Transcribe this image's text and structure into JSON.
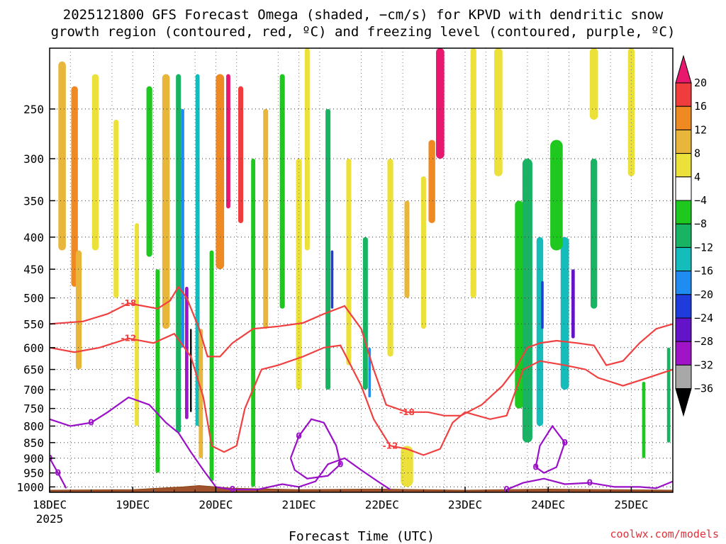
{
  "chart_data": {
    "type": "heatmap",
    "title_lines": [
      "2025121800 GFS Forecast Omega (shaded, −cm/s) for KPVD with dendritic snow",
      "growth region (contoured, red, ºC) and freezing level (contoured, purple, ºC)"
    ],
    "xlabel": "Forecast Time (UTC)",
    "ylabel": "",
    "y_scale": "log-pressure (hPa), inverted",
    "y_ticks": [
      250,
      300,
      350,
      400,
      450,
      500,
      550,
      600,
      650,
      700,
      750,
      800,
      850,
      900,
      950,
      1000
    ],
    "y_range": [
      200,
      1020
    ],
    "x_range_days": [
      18.0,
      25.5
    ],
    "x_ticks": [
      {
        "day": 18,
        "label": "18DEC",
        "sublabel": "2025"
      },
      {
        "day": 19,
        "label": "19DEC"
      },
      {
        "day": 20,
        "label": "20DEC"
      },
      {
        "day": 21,
        "label": "21DEC"
      },
      {
        "day": 22,
        "label": "22DEC"
      },
      {
        "day": 23,
        "label": "23DEC"
      },
      {
        "day": 24,
        "label": "24DEC"
      },
      {
        "day": 25,
        "label": "25DEC"
      }
    ],
    "grid": true,
    "colorbar": {
      "position": "right",
      "bins": [
        {
          "lo": 20,
          "hi": null,
          "color": "#e8186e"
        },
        {
          "lo": 16,
          "hi": 20,
          "color": "#f03c3c"
        },
        {
          "lo": 12,
          "hi": 16,
          "color": "#ef8a22"
        },
        {
          "lo": 8,
          "hi": 12,
          "color": "#e8b63a"
        },
        {
          "lo": 4,
          "hi": 8,
          "color": "#ece03a"
        },
        {
          "lo": -4,
          "hi": 4,
          "color": "#ffffff"
        },
        {
          "lo": -8,
          "hi": -4,
          "color": "#1ec81e"
        },
        {
          "lo": -12,
          "hi": -8,
          "color": "#18b464"
        },
        {
          "lo": -16,
          "hi": -12,
          "color": "#14bcbc"
        },
        {
          "lo": -20,
          "hi": -16,
          "color": "#1e8cf0"
        },
        {
          "lo": -24,
          "hi": -20,
          "color": "#1e3cdc"
        },
        {
          "lo": -28,
          "hi": -24,
          "color": "#6414c8"
        },
        {
          "lo": -32,
          "hi": -28,
          "color": "#a014c8"
        },
        {
          "lo": -36,
          "hi": -32,
          "color": "#a8a8a8"
        },
        {
          "lo": null,
          "hi": -36,
          "color": "#000000"
        }
      ],
      "labels": [
        "20",
        "16",
        "12",
        "8",
        "4",
        "−4",
        "−8",
        "−12",
        "−16",
        "−20",
        "−24",
        "−28",
        "−32",
        "−36"
      ]
    },
    "omega_blobs": [
      {
        "day": 18.15,
        "p0": 210,
        "p1": 420,
        "w": 0.09,
        "v": 10
      },
      {
        "day": 18.3,
        "p0": 230,
        "p1": 480,
        "w": 0.08,
        "v": 14
      },
      {
        "day": 18.35,
        "p0": 420,
        "p1": 650,
        "w": 0.07,
        "v": 10
      },
      {
        "day": 18.55,
        "p0": 220,
        "p1": 420,
        "w": 0.08,
        "v": 6
      },
      {
        "day": 18.8,
        "p0": 260,
        "p1": 500,
        "w": 0.06,
        "v": 6
      },
      {
        "day": 19.05,
        "p0": 380,
        "p1": 800,
        "w": 0.05,
        "v": 6
      },
      {
        "day": 19.2,
        "p0": 230,
        "p1": 430,
        "w": 0.07,
        "v": -6
      },
      {
        "day": 19.3,
        "p0": 450,
        "p1": 950,
        "w": 0.05,
        "v": -8
      },
      {
        "day": 19.4,
        "p0": 220,
        "p1": 560,
        "w": 0.09,
        "v": 10
      },
      {
        "day": 19.55,
        "p0": 220,
        "p1": 820,
        "w": 0.06,
        "v": -12
      },
      {
        "day": 19.6,
        "p0": 250,
        "p1": 600,
        "w": 0.04,
        "v": -20
      },
      {
        "day": 19.65,
        "p0": 480,
        "p1": 780,
        "w": 0.04,
        "v": -30
      },
      {
        "day": 19.7,
        "p0": 560,
        "p1": 760,
        "w": 0.02,
        "v": -40
      },
      {
        "day": 19.78,
        "p0": 220,
        "p1": 800,
        "w": 0.05,
        "v": -14
      },
      {
        "day": 19.82,
        "p0": 560,
        "p1": 900,
        "w": 0.05,
        "v": 10
      },
      {
        "day": 19.95,
        "p0": 420,
        "p1": 980,
        "w": 0.05,
        "v": -8
      },
      {
        "day": 20.05,
        "p0": 220,
        "p1": 450,
        "w": 0.1,
        "v": 12
      },
      {
        "day": 20.15,
        "p0": 220,
        "p1": 360,
        "w": 0.05,
        "v": 20
      },
      {
        "day": 20.3,
        "p0": 230,
        "p1": 380,
        "w": 0.06,
        "v": 16
      },
      {
        "day": 20.45,
        "p0": 300,
        "p1": 1000,
        "w": 0.05,
        "v": -8
      },
      {
        "day": 20.6,
        "p0": 250,
        "p1": 560,
        "w": 0.06,
        "v": 8
      },
      {
        "day": 20.8,
        "p0": 220,
        "p1": 520,
        "w": 0.06,
        "v": -6
      },
      {
        "day": 21.0,
        "p0": 300,
        "p1": 700,
        "w": 0.07,
        "v": 6
      },
      {
        "day": 21.1,
        "p0": 200,
        "p1": 420,
        "w": 0.06,
        "v": 6
      },
      {
        "day": 21.35,
        "p0": 250,
        "p1": 700,
        "w": 0.06,
        "v": -12
      },
      {
        "day": 21.4,
        "p0": 420,
        "p1": 520,
        "w": 0.03,
        "v": -22
      },
      {
        "day": 21.6,
        "p0": 300,
        "p1": 640,
        "w": 0.06,
        "v": 6
      },
      {
        "day": 21.8,
        "p0": 400,
        "p1": 700,
        "w": 0.06,
        "v": -12
      },
      {
        "day": 21.85,
        "p0": 600,
        "p1": 720,
        "w": 0.03,
        "v": -18
      },
      {
        "day": 22.1,
        "p0": 300,
        "p1": 620,
        "w": 0.07,
        "v": 6
      },
      {
        "day": 22.3,
        "p0": 350,
        "p1": 500,
        "w": 0.06,
        "v": 10
      },
      {
        "day": 22.5,
        "p0": 320,
        "p1": 560,
        "w": 0.06,
        "v": 6
      },
      {
        "day": 22.7,
        "p0": 200,
        "p1": 300,
        "w": 0.1,
        "v": 20
      },
      {
        "day": 22.6,
        "p0": 280,
        "p1": 380,
        "w": 0.08,
        "v": 12
      },
      {
        "day": 22.3,
        "p0": 860,
        "p1": 1000,
        "w": 0.15,
        "v": 6
      },
      {
        "day": 23.1,
        "p0": 200,
        "p1": 500,
        "w": 0.07,
        "v": 6
      },
      {
        "day": 23.4,
        "p0": 200,
        "p1": 320,
        "w": 0.1,
        "v": 6
      },
      {
        "day": 23.65,
        "p0": 350,
        "p1": 750,
        "w": 0.1,
        "v": -8
      },
      {
        "day": 23.75,
        "p0": 300,
        "p1": 850,
        "w": 0.12,
        "v": -12
      },
      {
        "day": 23.9,
        "p0": 400,
        "p1": 800,
        "w": 0.08,
        "v": -16
      },
      {
        "day": 23.93,
        "p0": 470,
        "p1": 560,
        "w": 0.03,
        "v": -22
      },
      {
        "day": 24.2,
        "p0": 400,
        "p1": 700,
        "w": 0.1,
        "v": -14
      },
      {
        "day": 24.3,
        "p0": 450,
        "p1": 580,
        "w": 0.04,
        "v": -26
      },
      {
        "day": 24.55,
        "p0": 300,
        "p1": 520,
        "w": 0.08,
        "v": -10
      },
      {
        "day": 24.55,
        "p0": 200,
        "p1": 260,
        "w": 0.1,
        "v": 6
      },
      {
        "day": 24.1,
        "p0": 280,
        "p1": 420,
        "w": 0.15,
        "v": -6
      },
      {
        "day": 25.0,
        "p0": 200,
        "p1": 320,
        "w": 0.08,
        "v": 6
      },
      {
        "day": 25.15,
        "p0": 680,
        "p1": 900,
        "w": 0.04,
        "v": -6
      },
      {
        "day": 25.45,
        "p0": 600,
        "p1": 850,
        "w": 0.04,
        "v": -10
      }
    ],
    "dgz_contours": [
      {
        "label": "-18",
        "points": [
          [
            18.0,
            550
          ],
          [
            18.4,
            545
          ],
          [
            18.7,
            530
          ],
          [
            18.95,
            510
          ],
          [
            19.3,
            520
          ],
          [
            19.45,
            505
          ],
          [
            19.55,
            480
          ],
          [
            19.65,
            500
          ],
          [
            19.8,
            560
          ],
          [
            19.9,
            620
          ],
          [
            20.05,
            620
          ],
          [
            20.2,
            590
          ],
          [
            20.45,
            560
          ],
          [
            20.75,
            555
          ],
          [
            21.05,
            548
          ],
          [
            21.3,
            530
          ],
          [
            21.55,
            515
          ],
          [
            21.75,
            560
          ],
          [
            21.9,
            650
          ],
          [
            22.05,
            740
          ],
          [
            22.3,
            760
          ],
          [
            22.55,
            760
          ],
          [
            22.75,
            770
          ],
          [
            22.95,
            770
          ],
          [
            23.2,
            740
          ],
          [
            23.45,
            690
          ],
          [
            23.6,
            650
          ],
          [
            23.75,
            600
          ],
          [
            23.9,
            590
          ],
          [
            24.1,
            585
          ],
          [
            24.35,
            590
          ],
          [
            24.55,
            595
          ],
          [
            24.7,
            640
          ],
          [
            24.9,
            630
          ],
          [
            25.1,
            590
          ],
          [
            25.3,
            560
          ],
          [
            25.5,
            550
          ]
        ]
      },
      {
        "label": "-12",
        "points": [
          [
            18.0,
            600
          ],
          [
            18.3,
            610
          ],
          [
            18.6,
            600
          ],
          [
            18.95,
            580
          ],
          [
            19.25,
            590
          ],
          [
            19.5,
            570
          ],
          [
            19.7,
            620
          ],
          [
            19.85,
            720
          ],
          [
            19.95,
            860
          ],
          [
            20.1,
            880
          ],
          [
            20.25,
            860
          ],
          [
            20.35,
            750
          ],
          [
            20.55,
            650
          ],
          [
            20.75,
            640
          ],
          [
            21.05,
            620
          ],
          [
            21.3,
            600
          ],
          [
            21.5,
            595
          ],
          [
            21.75,
            690
          ],
          [
            21.9,
            780
          ],
          [
            22.1,
            860
          ],
          [
            22.3,
            870
          ],
          [
            22.5,
            890
          ],
          [
            22.7,
            870
          ],
          [
            22.85,
            790
          ],
          [
            23.0,
            760
          ],
          [
            23.3,
            780
          ],
          [
            23.5,
            770
          ],
          [
            23.7,
            650
          ],
          [
            23.9,
            630
          ],
          [
            24.2,
            640
          ],
          [
            24.45,
            650
          ],
          [
            24.6,
            670
          ],
          [
            24.9,
            690
          ],
          [
            25.2,
            670
          ],
          [
            25.5,
            650
          ]
        ]
      }
    ],
    "freezing_contours": [
      {
        "label": "0",
        "points": [
          [
            18.0,
            780
          ],
          [
            18.25,
            800
          ],
          [
            18.5,
            790
          ],
          [
            18.7,
            760
          ],
          [
            18.95,
            720
          ],
          [
            19.2,
            740
          ],
          [
            19.4,
            790
          ],
          [
            19.55,
            820
          ],
          [
            19.7,
            880
          ],
          [
            19.85,
            940
          ],
          [
            20.0,
            1000
          ],
          [
            20.2,
            1010
          ],
          [
            20.5,
            1010
          ],
          [
            20.8,
            990
          ],
          [
            21.0,
            1000
          ],
          [
            21.2,
            980
          ],
          [
            21.35,
            920
          ],
          [
            21.55,
            900
          ],
          [
            21.75,
            940
          ],
          [
            21.95,
            980
          ],
          [
            22.1,
            1010
          ]
        ]
      },
      {
        "label": "0",
        "points": [
          [
            20.9,
            900
          ],
          [
            21.0,
            830
          ],
          [
            21.15,
            780
          ],
          [
            21.3,
            790
          ],
          [
            21.45,
            860
          ],
          [
            21.5,
            920
          ],
          [
            21.35,
            960
          ],
          [
            21.1,
            970
          ],
          [
            20.95,
            940
          ],
          [
            20.9,
            900
          ]
        ]
      },
      {
        "label": "0",
        "points": [
          [
            23.5,
            1010
          ],
          [
            23.7,
            985
          ],
          [
            23.95,
            970
          ],
          [
            24.2,
            990
          ],
          [
            24.5,
            985
          ],
          [
            24.8,
            1000
          ],
          [
            25.1,
            1000
          ],
          [
            25.3,
            1005
          ],
          [
            25.5,
            980
          ]
        ]
      },
      {
        "label": "0",
        "points": [
          [
            23.85,
            930
          ],
          [
            23.9,
            860
          ],
          [
            24.05,
            800
          ],
          [
            24.2,
            850
          ],
          [
            24.1,
            930
          ],
          [
            23.95,
            950
          ],
          [
            23.85,
            930
          ]
        ]
      },
      {
        "label": "0",
        "points": [
          [
            18.0,
            900
          ],
          [
            18.1,
            950
          ],
          [
            18.2,
            1005
          ]
        ]
      }
    ],
    "terrain_surface": [
      [
        18.0,
        1012
      ],
      [
        19.0,
        1010
      ],
      [
        19.6,
        1000
      ],
      [
        19.8,
        995
      ],
      [
        20.2,
        1005
      ],
      [
        21.0,
        1010
      ],
      [
        22.0,
        1008
      ],
      [
        23.0,
        1012
      ],
      [
        24.0,
        1008
      ],
      [
        25.5,
        1012
      ]
    ],
    "credit": "coolwx.com/models"
  }
}
